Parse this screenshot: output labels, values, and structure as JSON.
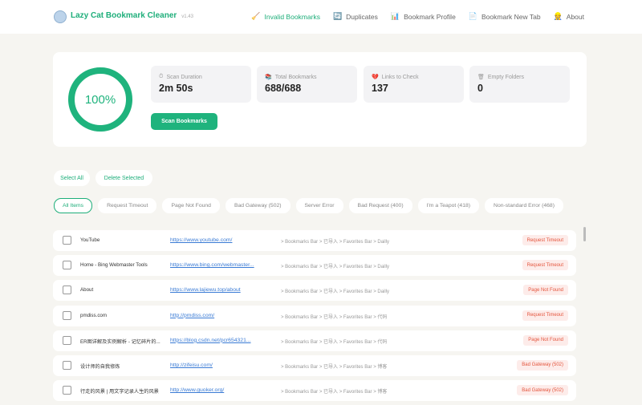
{
  "app": {
    "title": "Lazy Cat Bookmark Cleaner",
    "version": "v1.43"
  },
  "nav": [
    {
      "label": "Invalid Bookmarks",
      "icon": "broom-icon",
      "glyph": "🧹",
      "active": true
    },
    {
      "label": "Duplicates",
      "icon": "refresh-icon",
      "glyph": "🔄"
    },
    {
      "label": "Bookmark Profile",
      "icon": "bar-chart-icon",
      "glyph": "📊"
    },
    {
      "label": "Bookmark New Tab",
      "icon": "document-icon",
      "glyph": "📄"
    },
    {
      "label": "About",
      "icon": "person-icon",
      "glyph": "👷"
    }
  ],
  "progress": {
    "label": "100%",
    "value": 100,
    "color": "#1fb37d"
  },
  "stats": [
    {
      "label": "Scan Duration",
      "value": "2m 50s",
      "icon": "timer-icon",
      "glyph": "⏱"
    },
    {
      "label": "Total Bookmarks",
      "value": "688/688",
      "icon": "books-icon",
      "glyph": "📚"
    },
    {
      "label": "Links to Check",
      "value": "137",
      "icon": "heart-icon",
      "glyph": "💔"
    },
    {
      "label": "Empty Folders",
      "value": "0",
      "icon": "trash-icon",
      "glyph": "🗑"
    }
  ],
  "scan_button": "Scan Bookmarks",
  "select_all": "Select All",
  "delete_selected": "Delete Selected",
  "filters": [
    "All Items",
    "Request Timeout",
    "Page Not Found",
    "Bad Gateway (502)",
    "Server Error",
    "Bad Request (400)",
    "I'm a Teapot (418)",
    "Non-standard Error (468)"
  ],
  "rows": [
    {
      "title": "YouTube",
      "url": "https://www.youtube.com/",
      "path": "> Bookmarks Bar > 已导入 > Favorites Bar > Dailly",
      "status": "Request Timeout"
    },
    {
      "title": "Home - Bing Webmaster Tools",
      "url": "https://www.bing.com/webmaster...",
      "path": "> Bookmarks Bar > 已导入 > Favorites Bar > Dailly",
      "status": "Request Timeout"
    },
    {
      "title": "About",
      "url": "https://www.lajiewu.top/about",
      "path": "> Bookmarks Bar > 已导入 > Favorites Bar > Dailly",
      "status": "Page Not Found"
    },
    {
      "title": "pmdiss.com",
      "url": "http://pmdiss.com/",
      "path": "> Bookmarks Bar > 已导入 > Favorites Bar > 代码",
      "status": "Request Timeout"
    },
    {
      "title": "ER图详解及实例解析 - 记忆碎片的...",
      "url": "https://blog.csdn.net/pcr654321...",
      "path": "> Bookmarks Bar > 已导入 > Favorites Bar > 代码",
      "status": "Page Not Found"
    },
    {
      "title": "设计师的自我修炼",
      "url": "http://zifeisu.com/",
      "path": "> Bookmarks Bar > 已导入 > Favorites Bar > 博客",
      "status": "Bad Gateway (502)"
    },
    {
      "title": "行走的风景 | 用文字记录人生的风景",
      "url": "http://www.guoker.org/",
      "path": "> Bookmarks Bar > 已导入 > Favorites Bar > 博客",
      "status": "Bad Gateway (502)"
    }
  ]
}
